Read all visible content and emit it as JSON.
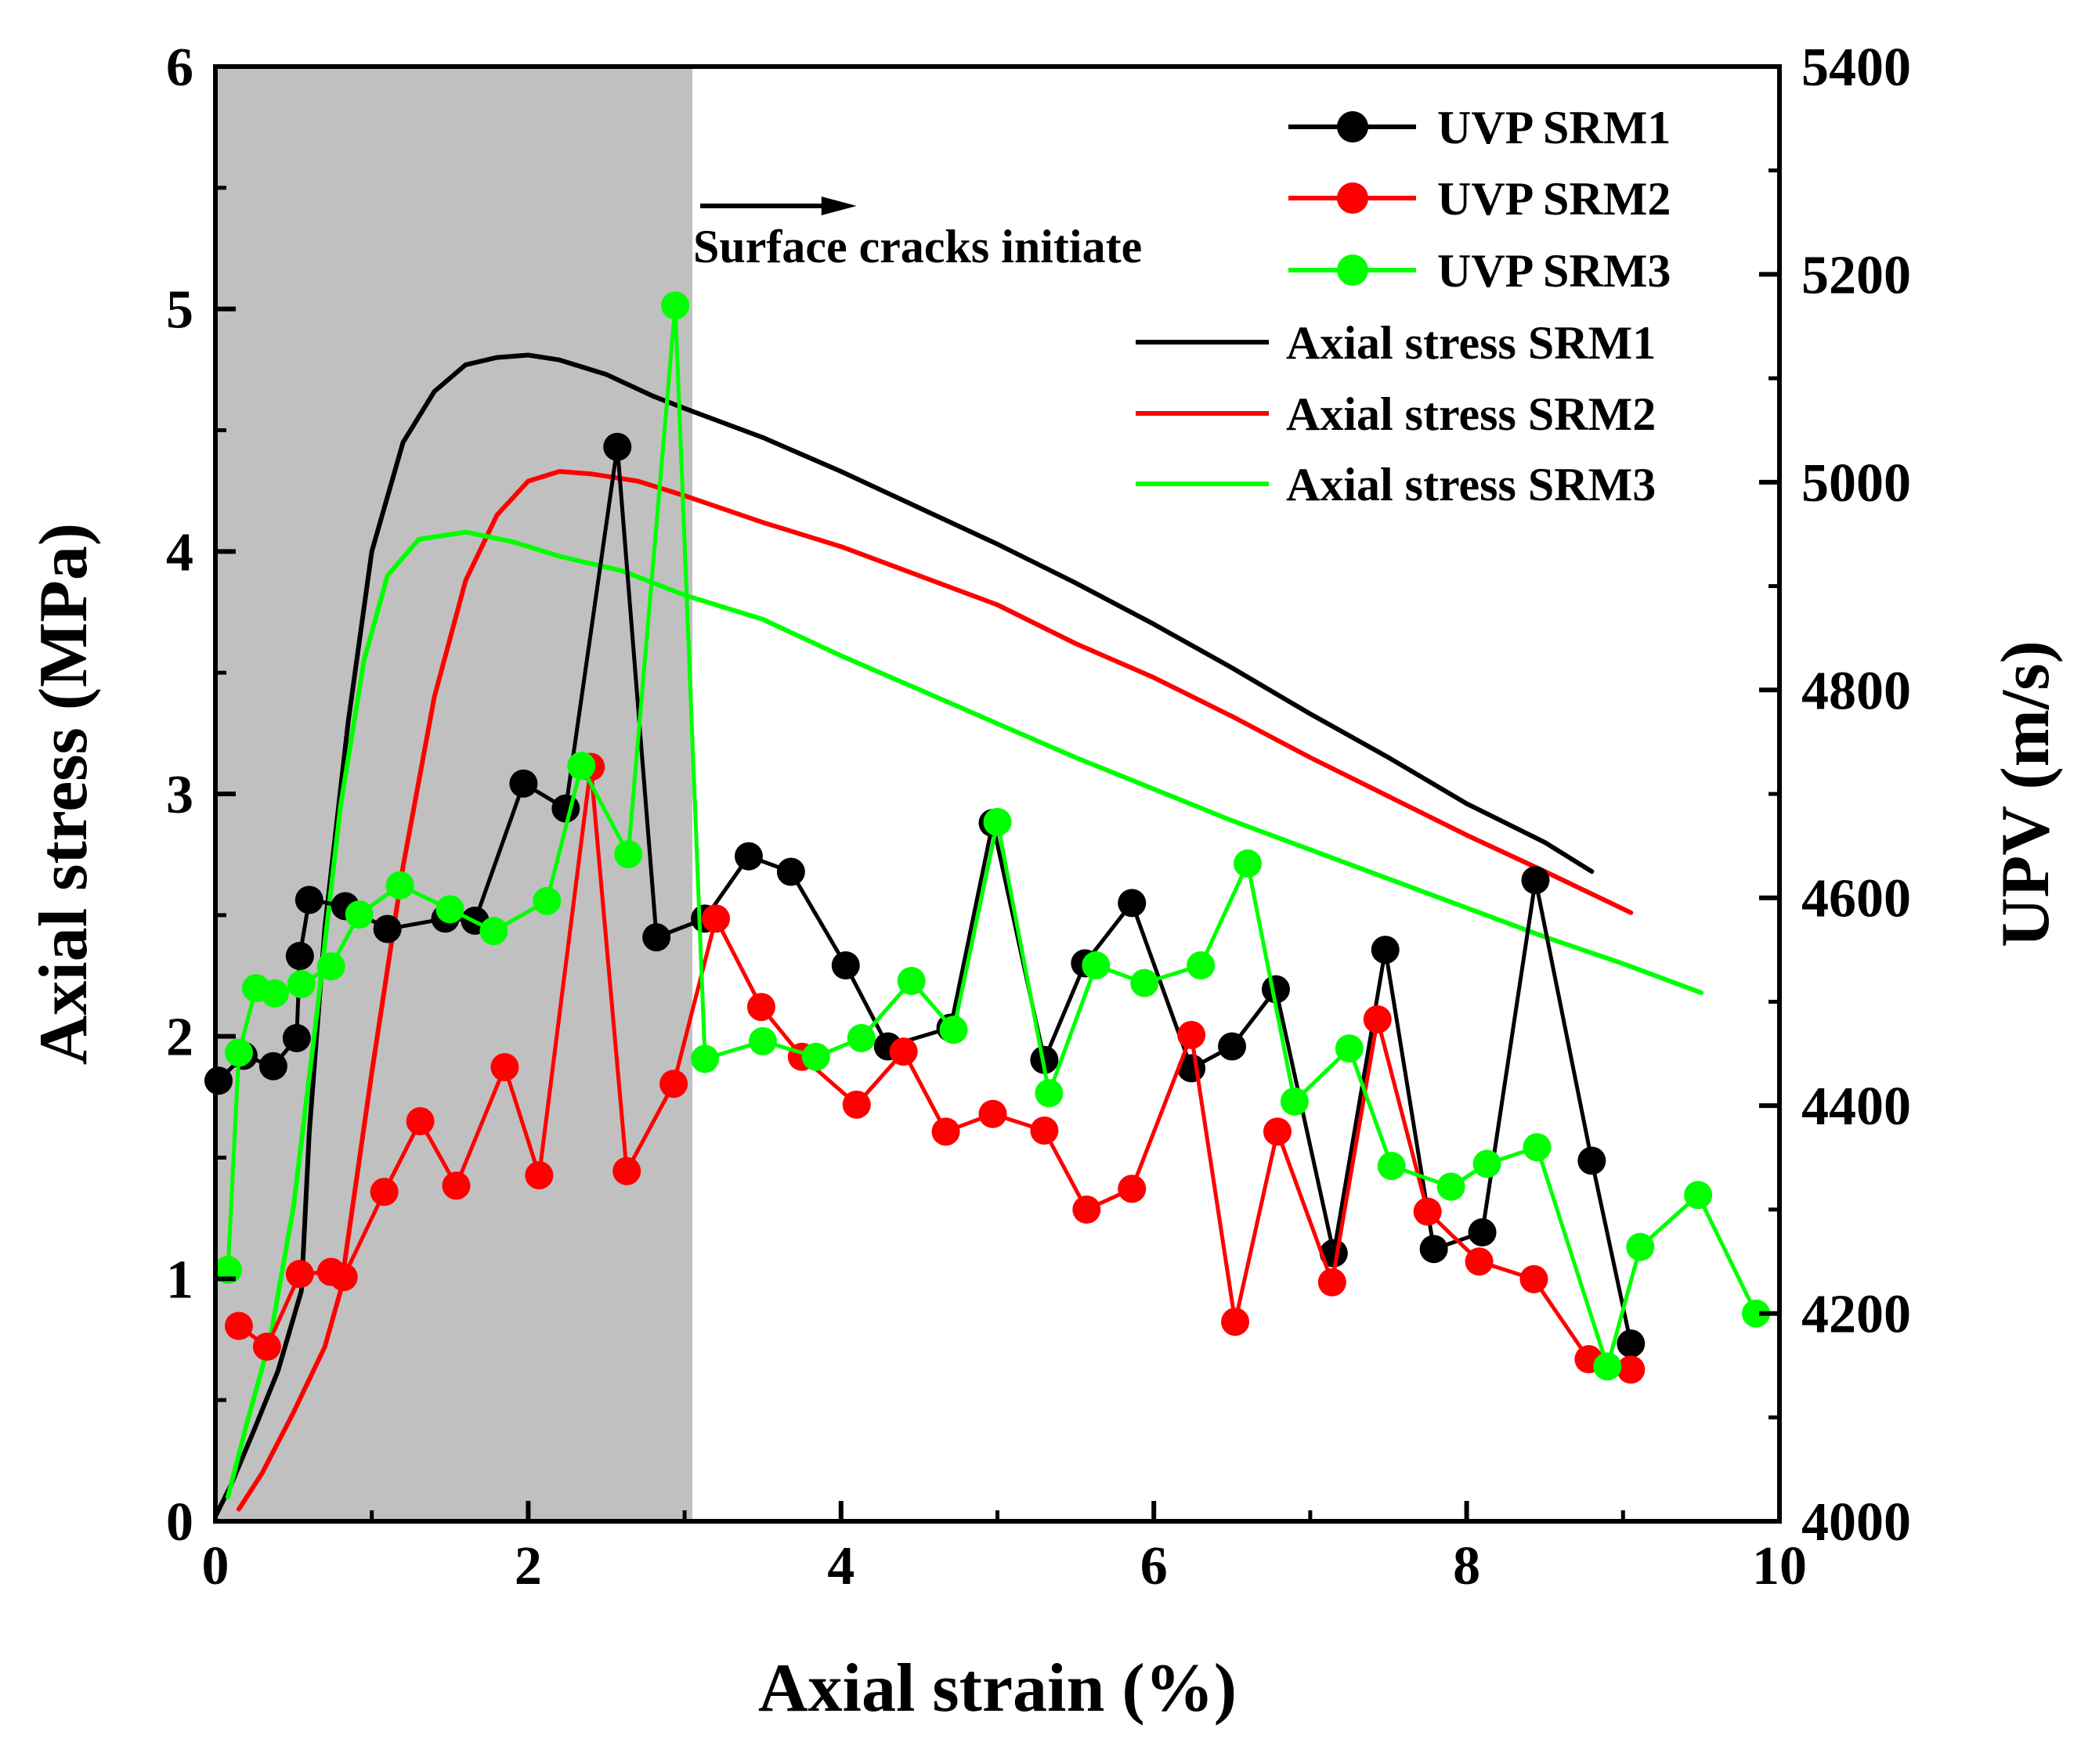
{
  "chart_data": {
    "type": "line",
    "title": "",
    "xlabel": "Axial strain (%)",
    "ylabel": "Axial stress (MPa)",
    "y2label": "UPV (m/s)",
    "xlim": [
      0,
      10
    ],
    "ylim": [
      0,
      6
    ],
    "y2lim": [
      4000,
      5400
    ],
    "x_ticks": [
      "0",
      "2",
      "4",
      "6",
      "8",
      "10"
    ],
    "y_ticks": [
      "0",
      "1",
      "2",
      "3",
      "4",
      "5",
      "6"
    ],
    "y2_ticks": [
      "4000",
      "4200",
      "4400",
      "4600",
      "4800",
      "5000",
      "5200",
      "5400"
    ],
    "shaded_region": {
      "x_start": 0,
      "x_end": 3.05,
      "color": "#c0c0c0"
    },
    "annotation": {
      "text": "Surface cracks initiate",
      "arrow_from_x": 3.05,
      "arrow_to_x": 4.1
    },
    "legend_position": "top-right",
    "colors": {
      "SRM1": "#000000",
      "SRM2": "#ff0000",
      "SRM3": "#00ff00"
    },
    "series": [
      {
        "name": "UVP SRM1",
        "axis": "right",
        "style": "line-markers",
        "color": "#000000",
        "x": [
          0.02,
          0.18,
          0.37,
          0.52,
          0.54,
          0.6,
          0.83,
          1.1,
          1.47,
          1.66,
          1.97,
          2.24,
          2.57,
          2.82,
          3.13,
          3.41,
          3.68,
          4.03,
          4.3,
          4.7,
          4.97,
          5.3,
          5.56,
          5.86,
          6.24,
          6.5,
          6.78,
          7.15,
          7.48,
          7.79,
          8.1,
          8.44,
          8.8,
          9.05
        ],
        "values": [
          4424,
          4448,
          4438,
          4465,
          4544,
          4598,
          4592,
          4570,
          4580,
          4578,
          4710,
          4686,
          5034,
          4562,
          4580,
          4640,
          4625,
          4535,
          4457,
          4475,
          4672,
          4444,
          4537,
          4595,
          4436,
          4457,
          4512,
          4258,
          4550,
          4262,
          4278,
          4617,
          4347,
          4171
        ]
      },
      {
        "name": "UVP SRM2",
        "axis": "right",
        "style": "line-markers",
        "color": "#ff0000",
        "x": [
          0.15,
          0.33,
          0.54,
          0.74,
          0.82,
          1.08,
          1.31,
          1.54,
          1.85,
          2.07,
          2.4,
          2.63,
          2.93,
          3.2,
          3.49,
          3.75,
          4.1,
          4.4,
          4.67,
          4.97,
          5.3,
          5.57,
          5.86,
          6.24,
          6.52,
          6.79,
          7.14,
          7.43,
          7.75,
          8.08,
          8.43,
          8.78,
          9.05
        ],
        "values": [
          4188,
          4168,
          4238,
          4240,
          4235,
          4317,
          4385,
          4323,
          4437,
          4333,
          4726,
          4337,
          4421,
          4580,
          4495,
          4447,
          4401,
          4452,
          4375,
          4392,
          4376,
          4300,
          4320,
          4468,
          4192,
          4375,
          4230,
          4483,
          4298,
          4250,
          4233,
          4156,
          4146
        ]
      },
      {
        "name": "UVP SRM3",
        "axis": "right",
        "style": "line-markers",
        "color": "#00ff00",
        "x": [
          0.08,
          0.15,
          0.26,
          0.38,
          0.55,
          0.74,
          0.92,
          1.18,
          1.5,
          1.78,
          2.12,
          2.34,
          2.64,
          2.94,
          3.13,
          3.5,
          3.84,
          4.13,
          4.45,
          4.72,
          5.0,
          5.33,
          5.63,
          5.94,
          6.3,
          6.6,
          6.9,
          7.25,
          7.52,
          7.9,
          8.13,
          8.45,
          8.9,
          9.11,
          9.48,
          9.85
        ],
        "values": [
          4242,
          4451,
          4513,
          4508,
          4517,
          4534,
          4584,
          4612,
          4589,
          4568,
          4597,
          4727,
          4642,
          5170,
          4445,
          4462,
          4447,
          4465,
          4520,
          4473,
          4673,
          4412,
          4535,
          4518,
          4535,
          4633,
          4404,
          4455,
          4342,
          4322,
          4344,
          4360,
          4149,
          4264,
          4314,
          4200
        ]
      },
      {
        "name": "Axial stress SRM1",
        "axis": "left",
        "style": "line",
        "color": "#000000",
        "x": [
          0,
          0.1,
          0.25,
          0.4,
          0.55,
          0.6,
          0.7,
          0.85,
          1.0,
          1.2,
          1.4,
          1.6,
          1.8,
          2.0,
          2.2,
          2.5,
          2.8,
          3.0,
          3.5,
          4.0,
          4.5,
          5.0,
          5.5,
          6.0,
          6.5,
          7.0,
          7.5,
          8.0,
          8.5,
          8.8
        ],
        "values": [
          0.02,
          0.15,
          0.38,
          0.62,
          0.95,
          1.6,
          2.45,
          3.3,
          4.0,
          4.45,
          4.66,
          4.77,
          4.8,
          4.81,
          4.79,
          4.73,
          4.64,
          4.59,
          4.47,
          4.33,
          4.18,
          4.03,
          3.87,
          3.7,
          3.52,
          3.33,
          3.15,
          2.96,
          2.8,
          2.68
        ]
      },
      {
        "name": "Axial stress SRM2",
        "axis": "left",
        "style": "line",
        "color": "#ff0000",
        "x": [
          0.15,
          0.3,
          0.5,
          0.7,
          0.8,
          1.0,
          1.2,
          1.4,
          1.6,
          1.8,
          2.0,
          2.2,
          2.4,
          2.7,
          3.0,
          3.5,
          4.0,
          4.5,
          5.0,
          5.5,
          6.0,
          6.5,
          7.0,
          7.5,
          8.0,
          8.5,
          9.05
        ],
        "values": [
          0.05,
          0.2,
          0.45,
          0.72,
          0.95,
          1.85,
          2.7,
          3.4,
          3.88,
          4.15,
          4.29,
          4.33,
          4.32,
          4.29,
          4.23,
          4.12,
          4.02,
          3.9,
          3.78,
          3.62,
          3.48,
          3.32,
          3.15,
          2.99,
          2.83,
          2.68,
          2.51
        ]
      },
      {
        "name": "Axial stress SRM3",
        "axis": "left",
        "style": "line",
        "color": "#00ff00",
        "x": [
          0.08,
          0.2,
          0.35,
          0.5,
          0.65,
          0.8,
          0.95,
          1.1,
          1.3,
          1.6,
          1.9,
          2.2,
          2.6,
          3.0,
          3.5,
          4.0,
          4.5,
          5.0,
          5.5,
          6.0,
          6.5,
          7.0,
          7.5,
          8.0,
          8.5,
          9.0,
          9.5
        ],
        "values": [
          0.1,
          0.4,
          0.75,
          1.3,
          2.1,
          2.95,
          3.55,
          3.9,
          4.05,
          4.08,
          4.04,
          3.98,
          3.92,
          3.82,
          3.72,
          3.57,
          3.43,
          3.29,
          3.15,
          3.02,
          2.89,
          2.77,
          2.65,
          2.53,
          2.41,
          2.3,
          2.18
        ]
      }
    ]
  }
}
